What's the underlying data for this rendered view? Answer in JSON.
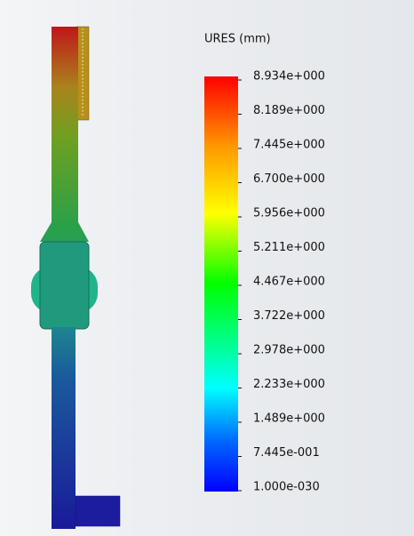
{
  "legend": {
    "title": "URES (mm)",
    "labels": [
      "8.934e+000",
      "8.189e+000",
      "7.445e+000",
      "6.700e+000",
      "5.956e+000",
      "5.211e+000",
      "4.467e+000",
      "3.722e+000",
      "2.978e+000",
      "2.233e+000",
      "1.489e+000",
      "7.445e-001",
      "1.000e-030"
    ]
  }
}
